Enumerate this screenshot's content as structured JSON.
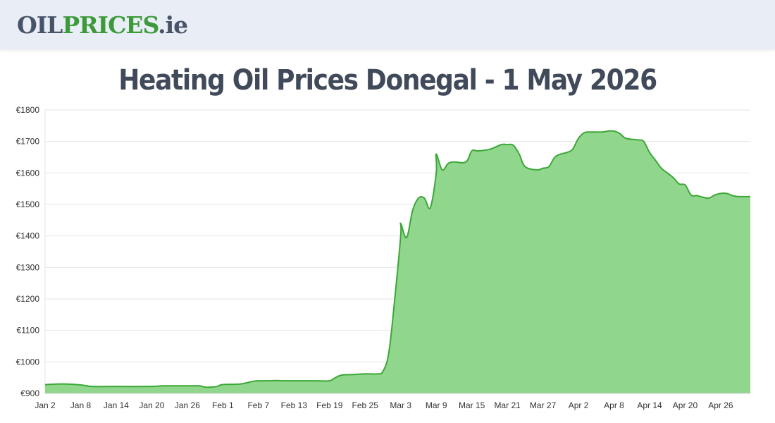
{
  "header": {
    "logo_part1": "OIL",
    "logo_part2": "PRICES",
    "logo_part3": ".ie"
  },
  "colors": {
    "area_fill": "#90d68c",
    "line": "#3ba836",
    "grid": "#e6e6e6",
    "header_bg": "#e9edf5"
  },
  "chart_data": {
    "type": "area",
    "title": "Heating Oil Prices Donegal - 1 May 2026",
    "grid": true,
    "ylim": [
      900,
      1800
    ],
    "y_ticks": [
      900,
      1000,
      1100,
      1200,
      1300,
      1400,
      1500,
      1600,
      1700,
      1800
    ],
    "y_tick_labels": [
      "€900",
      "€1000",
      "€1100",
      "€1200",
      "€1300",
      "€1400",
      "€1500",
      "€1600",
      "€1700",
      "€1800"
    ],
    "x_range": [
      "2026-01-02",
      "2026-05-01"
    ],
    "x_ticks": [
      "2026-01-02",
      "2026-01-08",
      "2026-01-14",
      "2026-01-20",
      "2026-01-26",
      "2026-02-01",
      "2026-02-07",
      "2026-02-13",
      "2026-02-19",
      "2026-02-25",
      "2026-03-03",
      "2026-03-09",
      "2026-03-15",
      "2026-03-21",
      "2026-03-27",
      "2026-04-02",
      "2026-04-08",
      "2026-04-14",
      "2026-04-20",
      "2026-04-26"
    ],
    "x_tick_labels": [
      "Jan 2",
      "Jan 8",
      "Jan 14",
      "Jan 20",
      "Jan 26",
      "Feb 1",
      "Feb 7",
      "Feb 13",
      "Feb 19",
      "Feb 25",
      "Mar 3",
      "Mar 9",
      "Mar 15",
      "Mar 21",
      "Mar 27",
      "Apr 2",
      "Apr 8",
      "Apr 14",
      "Apr 20",
      "Apr 26"
    ],
    "series": [
      {
        "points": [
          [
            "2026-01-02",
            928
          ],
          [
            "2026-01-05",
            930
          ],
          [
            "2026-01-08",
            927
          ],
          [
            "2026-01-10",
            922
          ],
          [
            "2026-01-14",
            922
          ],
          [
            "2026-01-20",
            922
          ],
          [
            "2026-01-22",
            924
          ],
          [
            "2026-01-26",
            924
          ],
          [
            "2026-01-28",
            924
          ],
          [
            "2026-01-29",
            920
          ],
          [
            "2026-01-30",
            920
          ],
          [
            "2026-01-31",
            922
          ],
          [
            "2026-02-01",
            928
          ],
          [
            "2026-02-04",
            930
          ],
          [
            "2026-02-06",
            938
          ],
          [
            "2026-02-07",
            940
          ],
          [
            "2026-02-09",
            940
          ],
          [
            "2026-02-10",
            941
          ],
          [
            "2026-02-11",
            940
          ],
          [
            "2026-02-13",
            940
          ],
          [
            "2026-02-16",
            940
          ],
          [
            "2026-02-17",
            940
          ],
          [
            "2026-02-19",
            940
          ],
          [
            "2026-02-20",
            950
          ],
          [
            "2026-02-21",
            958
          ],
          [
            "2026-02-23",
            960
          ],
          [
            "2026-02-25",
            962
          ],
          [
            "2026-02-27",
            962
          ],
          [
            "2026-02-28",
            970
          ],
          [
            "2026-03-01",
            1030
          ],
          [
            "2026-03-02",
            1200
          ],
          [
            "2026-03-03",
            1400
          ],
          [
            "2026-03-03",
            1440
          ],
          [
            "2026-03-04",
            1395
          ],
          [
            "2026-03-05",
            1480
          ],
          [
            "2026-03-06",
            1520
          ],
          [
            "2026-03-07",
            1520
          ],
          [
            "2026-03-08",
            1490
          ],
          [
            "2026-03-09",
            1600
          ],
          [
            "2026-03-09",
            1660
          ],
          [
            "2026-03-10",
            1610
          ],
          [
            "2026-03-11",
            1630
          ],
          [
            "2026-03-12",
            1635
          ],
          [
            "2026-03-14",
            1635
          ],
          [
            "2026-03-15",
            1670
          ],
          [
            "2026-03-16",
            1670
          ],
          [
            "2026-03-18",
            1675
          ],
          [
            "2026-03-20",
            1690
          ],
          [
            "2026-03-21",
            1690
          ],
          [
            "2026-03-22",
            1688
          ],
          [
            "2026-03-23",
            1660
          ],
          [
            "2026-03-24",
            1620
          ],
          [
            "2026-03-26",
            1610
          ],
          [
            "2026-03-27",
            1615
          ],
          [
            "2026-03-28",
            1620
          ],
          [
            "2026-03-29",
            1650
          ],
          [
            "2026-03-30",
            1660
          ],
          [
            "2026-03-31",
            1665
          ],
          [
            "2026-04-01",
            1675
          ],
          [
            "2026-04-02",
            1710
          ],
          [
            "2026-04-03",
            1728
          ],
          [
            "2026-04-04",
            1730
          ],
          [
            "2026-04-06",
            1730
          ],
          [
            "2026-04-07",
            1733
          ],
          [
            "2026-04-08",
            1733
          ],
          [
            "2026-04-09",
            1725
          ],
          [
            "2026-04-10",
            1710
          ],
          [
            "2026-04-12",
            1705
          ],
          [
            "2026-04-13",
            1700
          ],
          [
            "2026-04-14",
            1665
          ],
          [
            "2026-04-15",
            1640
          ],
          [
            "2026-04-16",
            1615
          ],
          [
            "2026-04-17",
            1600
          ],
          [
            "2026-04-18",
            1585
          ],
          [
            "2026-04-19",
            1565
          ],
          [
            "2026-04-20",
            1562
          ],
          [
            "2026-04-21",
            1530
          ],
          [
            "2026-04-22",
            1528
          ],
          [
            "2026-04-23",
            1523
          ],
          [
            "2026-04-24",
            1520
          ],
          [
            "2026-04-25",
            1530
          ],
          [
            "2026-04-26",
            1535
          ],
          [
            "2026-04-27",
            1535
          ],
          [
            "2026-04-28",
            1528
          ],
          [
            "2026-04-29",
            1525
          ],
          [
            "2026-04-30",
            1525
          ],
          [
            "2026-05-01",
            1525
          ]
        ]
      }
    ]
  }
}
